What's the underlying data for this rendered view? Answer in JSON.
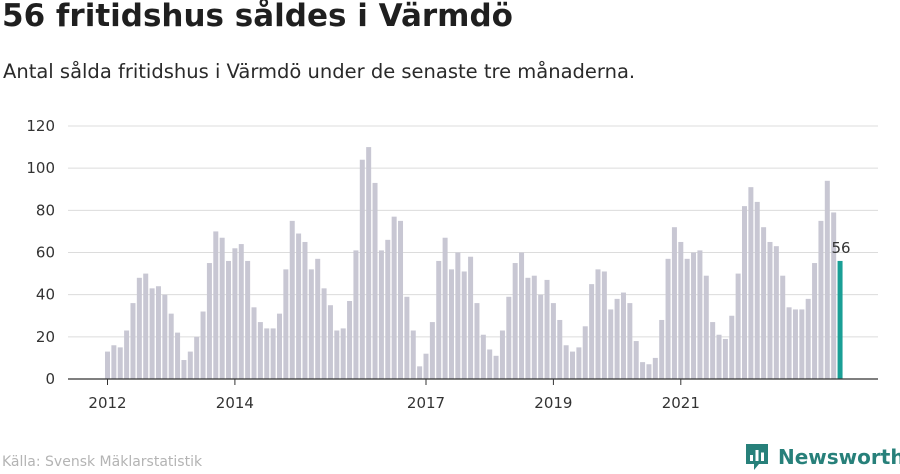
{
  "header": {
    "title": "56 fritidshus såldes i Värmdö",
    "subtitle": "Antal sålda fritidshus i Värmdö under de senaste tre månaderna."
  },
  "footer": {
    "source": "Källa: Svensk Mäklarstatistik",
    "brand": "Newsworthy"
  },
  "colors": {
    "bar": "#c8c7d3",
    "highlight": "#1a9f96",
    "grid": "#dcdcdc",
    "brand": "#27807a"
  },
  "chart_data": {
    "type": "bar",
    "title": "56 fritidshus såldes i Värmdö",
    "subtitle": "Antal sålda fritidshus i Värmdö under de senaste tre månaderna.",
    "xlabel": "",
    "ylabel": "",
    "ylim": [
      0,
      120
    ],
    "yticks": [
      0,
      20,
      40,
      60,
      80,
      100,
      120
    ],
    "grid": true,
    "x_tick_labels": [
      {
        "label": "2012",
        "index": 0
      },
      {
        "label": "2014",
        "index": 20
      },
      {
        "label": "2017",
        "index": 50
      },
      {
        "label": "2019",
        "index": 70
      },
      {
        "label": "2021",
        "index": 90
      }
    ],
    "values": [
      13,
      16,
      15,
      23,
      36,
      48,
      50,
      43,
      44,
      40,
      31,
      22,
      9,
      13,
      20,
      32,
      55,
      70,
      67,
      56,
      62,
      64,
      56,
      34,
      27,
      24,
      24,
      31,
      52,
      75,
      69,
      65,
      52,
      57,
      43,
      35,
      23,
      24,
      37,
      61,
      104,
      110,
      93,
      61,
      66,
      77,
      75,
      39,
      23,
      6,
      12,
      27,
      56,
      67,
      52,
      60,
      51,
      58,
      36,
      21,
      14,
      11,
      23,
      39,
      55,
      60,
      48,
      49,
      40,
      47,
      36,
      28,
      16,
      13,
      15,
      25,
      45,
      52,
      51,
      33,
      38,
      41,
      36,
      18,
      8,
      7,
      10,
      28,
      57,
      72,
      65,
      57,
      60,
      61,
      49,
      27,
      21,
      19,
      30,
      50,
      82,
      91,
      84,
      72,
      65,
      63,
      49,
      34,
      33,
      33,
      38,
      55,
      75,
      94,
      79,
      56
    ],
    "highlight": {
      "index": 115,
      "value": 56,
      "label": "56"
    }
  }
}
